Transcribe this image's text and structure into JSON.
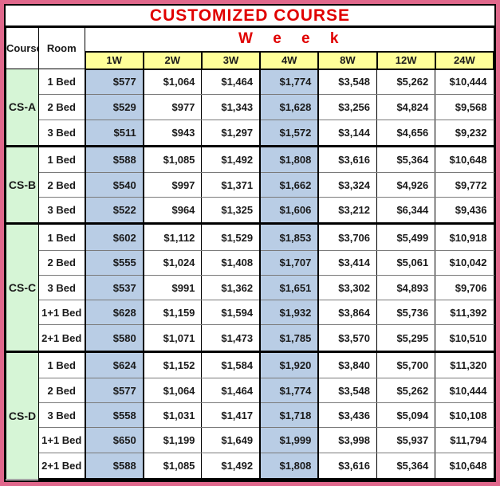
{
  "title": "CUSTOMIZED COURSE",
  "header": {
    "course_label": "Course",
    "room_label": "Room",
    "week_label": "W e e k",
    "week_columns": [
      "1W",
      "2W",
      "3W",
      "4W",
      "8W",
      "12W",
      "24W"
    ]
  },
  "colors": {
    "frame_pink": "#e0688c",
    "title_red": "#e00000",
    "header_yellow": "#ffff99",
    "course_green": "#d6f5d6",
    "highlight_blue": "#b9cde5"
  },
  "chart_data": {
    "type": "table",
    "title": "CUSTOMIZED COURSE",
    "column_group_label": "Week",
    "columns": [
      "Course",
      "Room",
      "1W",
      "2W",
      "3W",
      "4W",
      "8W",
      "12W",
      "24W"
    ],
    "highlighted_week_columns": [
      "1W",
      "4W"
    ],
    "groups": [
      {
        "course": "CS-A",
        "rows": [
          {
            "room": "1 Bed",
            "prices": [
              "$577",
              "$1,064",
              "$1,464",
              "$1,774",
              "$3,548",
              "$5,262",
              "$10,444"
            ]
          },
          {
            "room": "2 Bed",
            "prices": [
              "$529",
              "$977",
              "$1,343",
              "$1,628",
              "$3,256",
              "$4,824",
              "$9,568"
            ]
          },
          {
            "room": "3 Bed",
            "prices": [
              "$511",
              "$943",
              "$1,297",
              "$1,572",
              "$3,144",
              "$4,656",
              "$9,232"
            ]
          }
        ]
      },
      {
        "course": "CS-B",
        "rows": [
          {
            "room": "1 Bed",
            "prices": [
              "$588",
              "$1,085",
              "$1,492",
              "$1,808",
              "$3,616",
              "$5,364",
              "$10,648"
            ]
          },
          {
            "room": "2 Bed",
            "prices": [
              "$540",
              "$997",
              "$1,371",
              "$1,662",
              "$3,324",
              "$4,926",
              "$9,772"
            ]
          },
          {
            "room": "3 Bed",
            "prices": [
              "$522",
              "$964",
              "$1,325",
              "$1,606",
              "$3,212",
              "$6,344",
              "$9,436"
            ]
          }
        ]
      },
      {
        "course": "CS-C",
        "rows": [
          {
            "room": "1 Bed",
            "prices": [
              "$602",
              "$1,112",
              "$1,529",
              "$1,853",
              "$3,706",
              "$5,499",
              "$10,918"
            ]
          },
          {
            "room": "2 Bed",
            "prices": [
              "$555",
              "$1,024",
              "$1,408",
              "$1,707",
              "$3,414",
              "$5,061",
              "$10,042"
            ]
          },
          {
            "room": "3 Bed",
            "prices": [
              "$537",
              "$991",
              "$1,362",
              "$1,651",
              "$3,302",
              "$4,893",
              "$9,706"
            ]
          },
          {
            "room": "1+1 Bed",
            "prices": [
              "$628",
              "$1,159",
              "$1,594",
              "$1,932",
              "$3,864",
              "$5,736",
              "$11,392"
            ]
          },
          {
            "room": "2+1 Bed",
            "prices": [
              "$580",
              "$1,071",
              "$1,473",
              "$1,785",
              "$3,570",
              "$5,295",
              "$10,510"
            ]
          }
        ]
      },
      {
        "course": "CS-D",
        "rows": [
          {
            "room": "1 Bed",
            "prices": [
              "$624",
              "$1,152",
              "$1,584",
              "$1,920",
              "$3,840",
              "$5,700",
              "$11,320"
            ]
          },
          {
            "room": "2 Bed",
            "prices": [
              "$577",
              "$1,064",
              "$1,464",
              "$1,774",
              "$3,548",
              "$5,262",
              "$10,444"
            ]
          },
          {
            "room": "3 Bed",
            "prices": [
              "$558",
              "$1,031",
              "$1,417",
              "$1,718",
              "$3,436",
              "$5,094",
              "$10,108"
            ]
          },
          {
            "room": "1+1 Bed",
            "prices": [
              "$650",
              "$1,199",
              "$1,649",
              "$1,999",
              "$3,998",
              "$5,937",
              "$11,794"
            ]
          },
          {
            "room": "2+1 Bed",
            "prices": [
              "$588",
              "$1,085",
              "$1,492",
              "$1,808",
              "$3,616",
              "$5,364",
              "$10,648"
            ]
          }
        ]
      }
    ]
  }
}
